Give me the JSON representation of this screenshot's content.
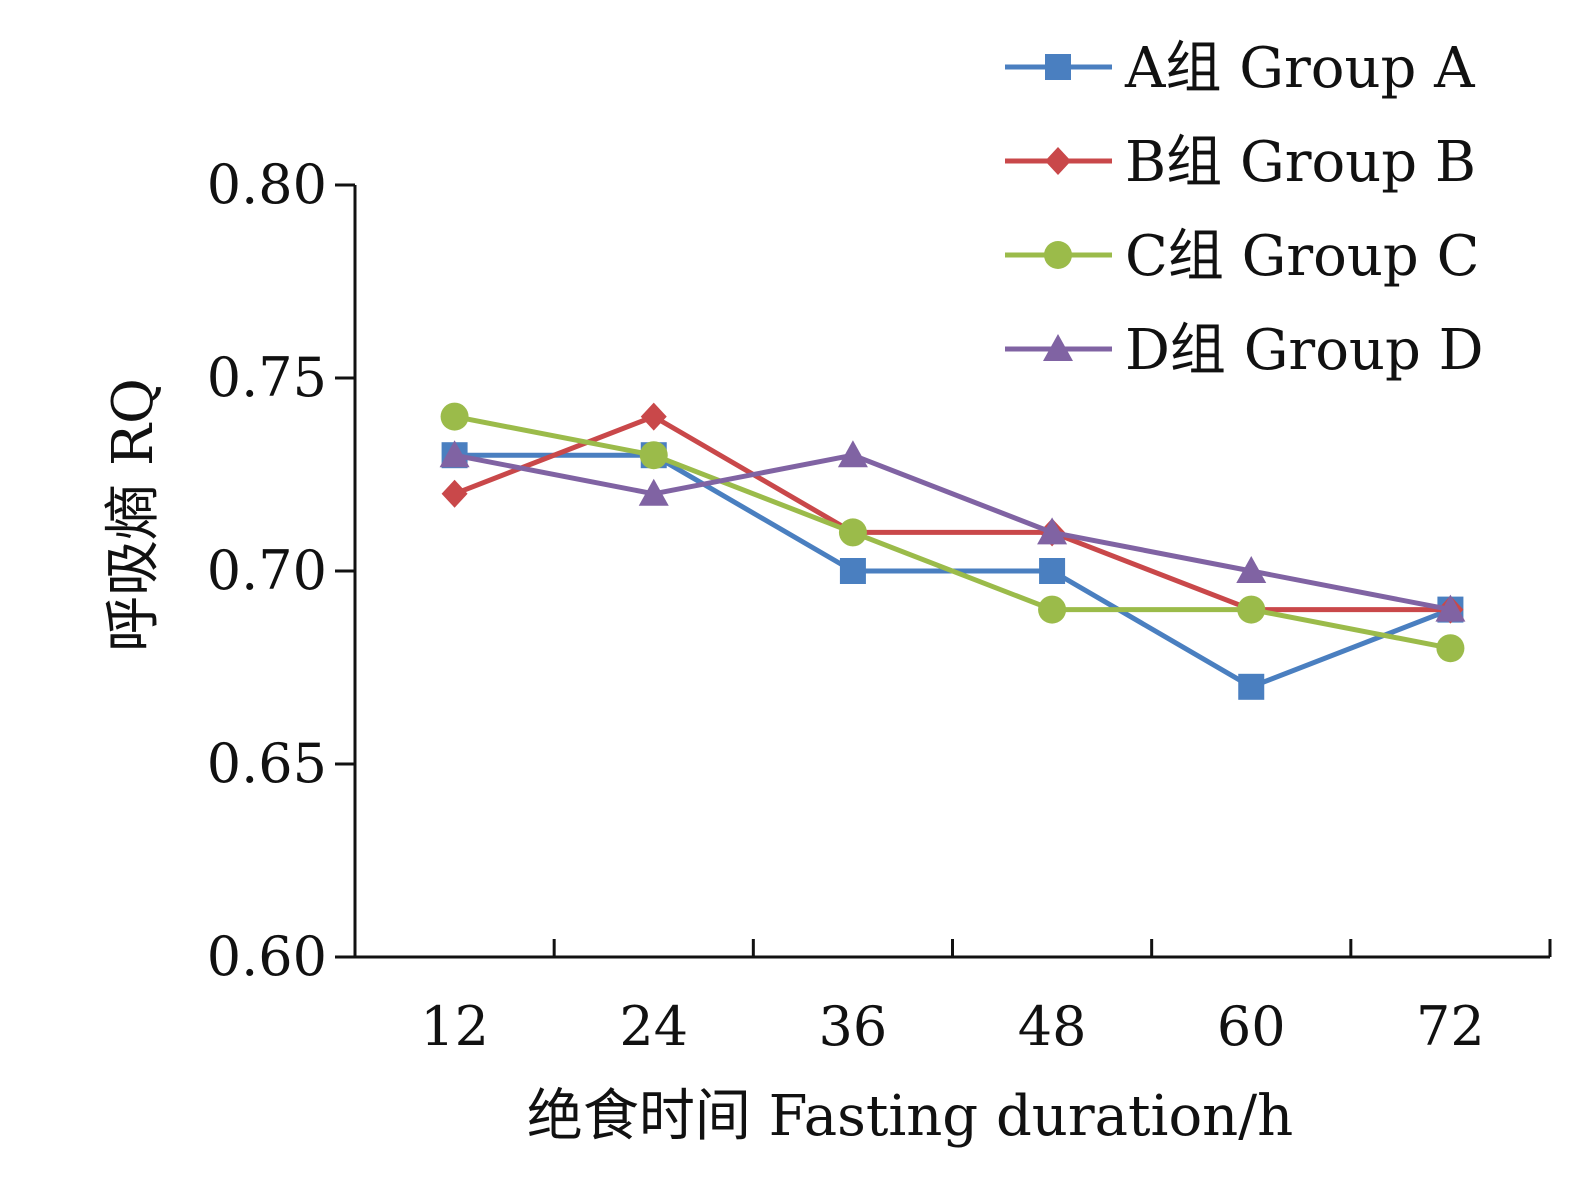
{
  "chart_data": {
    "type": "line",
    "title": "",
    "xlabel": "绝食时间  Fasting duration/h",
    "ylabel": "呼吸熵  RQ",
    "categories": [
      "12",
      "24",
      "36",
      "48",
      "60",
      "72"
    ],
    "ylim": [
      0.6,
      0.8
    ],
    "yticks": [
      "0.60",
      "0.65",
      "0.70",
      "0.75",
      "0.80"
    ],
    "grid": false,
    "legend_position": "top-right",
    "series": [
      {
        "name": "A组 Group A",
        "values": [
          0.73,
          0.73,
          0.7,
          0.7,
          0.67,
          0.69
        ],
        "color": "#4a7fc0",
        "marker": "square"
      },
      {
        "name": "B组 Group B",
        "values": [
          0.72,
          0.74,
          0.71,
          0.71,
          0.69,
          0.69
        ],
        "color": "#c9484a",
        "marker": "diamond"
      },
      {
        "name": "C组 Group C",
        "values": [
          0.74,
          0.73,
          0.71,
          0.69,
          0.69,
          0.68
        ],
        "color": "#9bbb4a",
        "marker": "circle"
      },
      {
        "name": "D组 Group D",
        "values": [
          0.73,
          0.72,
          0.73,
          0.71,
          0.7,
          0.69
        ],
        "color": "#8063a3",
        "marker": "triangle"
      }
    ]
  }
}
